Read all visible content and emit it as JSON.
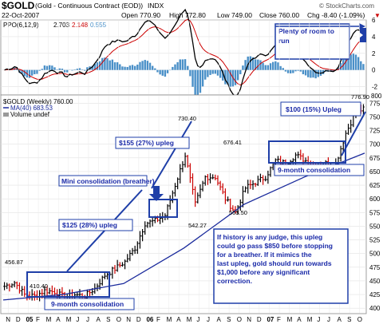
{
  "header": {
    "symbol": "$GOLD",
    "description": "(Gold - Continuous Contract (EOD))",
    "exchange": "INDX",
    "watermark": "© StockCharts.com",
    "date": "22-Oct-2007",
    "open": "Open 770.90",
    "high": "High 772.80",
    "low": "Low 749.00",
    "close": "Close 760.00",
    "change": "Chg -8.40 (-1.09%)",
    "change_arrow": "▼"
  },
  "ppo_panel": {
    "label_prefix": "PPO(6,12,9)",
    "ppo_value": "2.703",
    "signal_value": "2.148",
    "hist_value": "0.555",
    "y_ticks": [
      "6",
      "4",
      "2",
      "0",
      "-2"
    ],
    "annotation": "Plenty of room to run"
  },
  "price_panel": {
    "label": "$GOLD (Weekly) 760.00",
    "ma_label": "MA(40) 683.53",
    "volume_label": "Volume undef",
    "y_ticks": [
      "775",
      "750",
      "725",
      "700",
      "675",
      "650",
      "625",
      "600",
      "575",
      "550",
      "525",
      "500",
      "475",
      "450",
      "425",
      "400"
    ],
    "top_tick": "800"
  },
  "x_axis": [
    "N",
    "D",
    "05",
    "F",
    "M",
    "A",
    "M",
    "J",
    "J",
    "A",
    "S",
    "O",
    "N",
    "D",
    "06",
    "F",
    "M",
    "A",
    "M",
    "J",
    "J",
    "A",
    "S",
    "O",
    "N",
    "D",
    "07",
    "F",
    "M",
    "A",
    "M",
    "J",
    "J",
    "A",
    "S",
    "O"
  ],
  "price_labels": {
    "p456": "456.87",
    "p410": "410.40",
    "p730": "730.40",
    "p676": "676.41",
    "p542": "542.27",
    "p563": "563.50",
    "p776": "776.90"
  },
  "annotations": {
    "upleg_125": "$125 (28%) upleg",
    "upleg_155": "$155 (27%) upleg",
    "upleg_100": "$100 (15%) Upleg",
    "mini_consolidation": "Mini consolidation (breather)",
    "consolidation_2005": "9-month consolidation",
    "consolidation_2007": "9-month consolidation",
    "history_note": "If history is any judge, this upleg could go pass $850 before stopping for a breather.  If it mimics the last upleg, gold should run towards $1,000 before any significant correction."
  },
  "colors": {
    "up_bar": "#000000",
    "down_bar": "#cc0000",
    "ma_line": "#1a2a9c",
    "ppo_line": "#000000",
    "signal_line": "#cc0000",
    "histogram": "#4a90c8",
    "annotation_border": "#1f3fa8",
    "annotation_text": "#1a2aa8"
  },
  "chart_data": {
    "type": "line",
    "title": "$GOLD (Weekly)",
    "series": [
      {
        "name": "$GOLD (Weekly) 760.00",
        "x": [
          "2004-11",
          "2004-12",
          "2005-01",
          "2005-02",
          "2005-03",
          "2005-04",
          "2005-05",
          "2005-06",
          "2005-07",
          "2005-08",
          "2005-09",
          "2005-10",
          "2005-11",
          "2005-12",
          "2006-01",
          "2006-02",
          "2006-03",
          "2006-04",
          "2006-05",
          "2006-06",
          "2006-07",
          "2006-08",
          "2006-09",
          "2006-10",
          "2006-11",
          "2006-12",
          "2007-01",
          "2007-02",
          "2007-03",
          "2007-04",
          "2007-05",
          "2007-06",
          "2007-07",
          "2007-08",
          "2007-09",
          "2007-10"
        ],
        "values": [
          440,
          447,
          425,
          422,
          432,
          430,
          420,
          425,
          422,
          436,
          460,
          472,
          485,
          510,
          555,
          560,
          570,
          625,
          680,
          590,
          640,
          640,
          600,
          575,
          620,
          630,
          640,
          670,
          665,
          680,
          670,
          660,
          665,
          665,
          720,
          760
        ]
      },
      {
        "name": "MA(40) 683.53",
        "x": [
          "2004-11",
          "2005-05",
          "2005-11",
          "2006-05",
          "2006-11",
          "2007-05",
          "2007-10"
        ],
        "values": [
          415,
          425,
          445,
          510,
          590,
          640,
          683.53
        ]
      }
    ],
    "ylim": [
      390,
      790
    ],
    "ppo": {
      "ppo": 2.703,
      "signal": 2.148,
      "histogram": 0.555,
      "ylim": [
        -3,
        6
      ]
    }
  }
}
